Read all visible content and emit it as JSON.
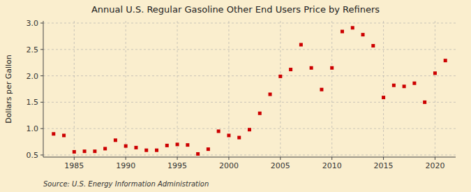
{
  "chart_data": {
    "type": "scatter",
    "title": "Annual U.S. Regular Gasoline Other End Users Price by Refiners",
    "ylabel": "Dollars per Gallon",
    "source": "Source: U.S. Energy Information Administration",
    "x": [
      1983,
      1984,
      1985,
      1986,
      1987,
      1988,
      1989,
      1990,
      1991,
      1992,
      1993,
      1994,
      1995,
      1996,
      1997,
      1998,
      1999,
      2000,
      2001,
      2002,
      2003,
      2004,
      2005,
      2006,
      2007,
      2008,
      2009,
      2010,
      2011,
      2012,
      2013,
      2014,
      2015,
      2016,
      2017,
      2018,
      2019,
      2020,
      2021
    ],
    "values": [
      0.9,
      0.87,
      0.56,
      0.57,
      0.57,
      0.62,
      0.78,
      0.67,
      0.64,
      0.59,
      0.59,
      0.68,
      0.7,
      0.69,
      0.52,
      0.61,
      0.95,
      0.87,
      0.83,
      0.98,
      1.29,
      1.65,
      1.99,
      2.12,
      2.59,
      2.15,
      1.74,
      2.15,
      2.84,
      2.91,
      2.78,
      2.57,
      1.59,
      1.82,
      1.8,
      1.86,
      1.5,
      2.05,
      2.29
    ],
    "color": "#cc0000",
    "marker": "square",
    "xlim": [
      1982,
      2022
    ],
    "ylim": [
      0.46,
      3.04
    ],
    "xticks": [
      1985,
      1990,
      1995,
      2000,
      2005,
      2010,
      2015,
      2020
    ],
    "yticks": [
      0.5,
      {
        "value": 1.0,
        "label": "1.0"
      },
      1.5,
      {
        "value": 2.0,
        "label": "2.0"
      },
      2.5,
      {
        "value": 3.0,
        "label": "3.0"
      }
    ],
    "grid": true
  }
}
